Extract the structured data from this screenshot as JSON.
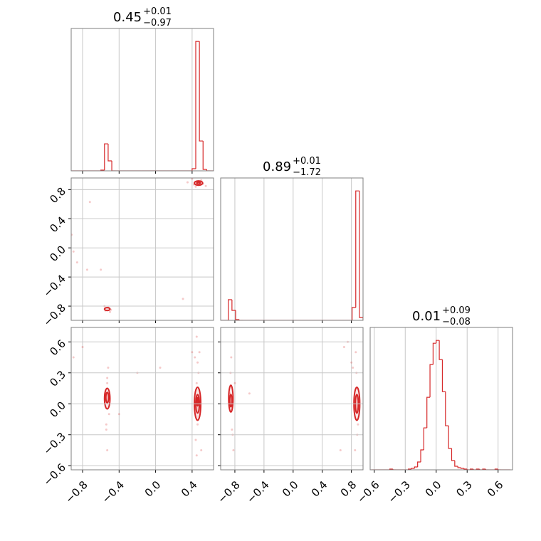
{
  "chart_data": [
    {
      "type": "histogram",
      "title": {
        "value": "0.45",
        "plus": "+0.01",
        "minus": "−0.97"
      },
      "color": "#d62728",
      "xlim": [
        -0.925,
        0.635
      ],
      "xticks": [
        {
          "value": -0.8,
          "label": "−0.8"
        },
        {
          "value": -0.4,
          "label": "−0.4"
        },
        {
          "value": 0.0,
          "label": "0.0"
        },
        0.4
      ],
      "bins": [
        -0.92,
        -0.88,
        -0.84,
        -0.8,
        -0.76,
        -0.72,
        -0.68,
        -0.64,
        -0.6,
        -0.56,
        -0.52,
        -0.48,
        -0.44,
        -0.4,
        -0.36,
        -0.32,
        -0.28,
        -0.24,
        -0.2,
        -0.16,
        -0.12,
        -0.08,
        -0.04,
        0,
        0.04,
        0.08,
        0.12,
        0.16,
        0.2,
        0.24,
        0.28,
        0.32,
        0.36,
        0.4,
        0.44,
        0.48,
        0.52,
        0.56,
        0.6,
        0.64
      ],
      "counts": [
        0,
        0,
        0,
        0,
        0,
        0,
        0,
        0,
        1,
        38,
        14,
        0,
        0,
        0,
        0,
        0,
        0,
        0,
        0,
        0,
        0,
        0,
        0,
        0,
        0,
        0,
        0,
        0,
        0,
        0,
        0,
        0,
        0,
        3,
        182,
        42,
        2,
        0,
        0
      ]
    },
    {
      "type": "scatter",
      "color": "#d62728",
      "xlim": [
        -0.925,
        0.635
      ],
      "xticks": [
        {
          "value": -0.8,
          "label": "−0.8"
        },
        {
          "value": -0.4,
          "label": "−0.4"
        },
        {
          "value": 0.0,
          "label": "0.0"
        },
        0.4
      ],
      "ylim": [
        -0.995,
        0.96
      ],
      "yticks": [
        {
          "value": -0.8,
          "label": "−0.8"
        },
        {
          "value": -0.4,
          "label": "−0.4"
        },
        {
          "value": 0.0,
          "label": "0.0"
        },
        0.4,
        0.8
      ],
      "x": [
        -0.92,
        -0.9,
        -0.72,
        -0.75,
        -0.6,
        -0.86,
        -0.56,
        -0.5,
        -0.52,
        0.3,
        0.55,
        0.4,
        0.42,
        0.5,
        0.35,
        0.44,
        0.52,
        -0.55,
        -0.49,
        0.48
      ],
      "y": [
        0.18,
        -0.05,
        0.63,
        -0.3,
        -0.3,
        -0.2,
        -0.8,
        -0.88,
        -0.82,
        -0.7,
        0.85,
        0.95,
        0.87,
        0.93,
        0.9,
        0.84,
        0.88,
        -0.86,
        -0.85,
        0.91
      ],
      "contours": [
        {
          "cx": 0.47,
          "cy": 0.89,
          "rx": 0.045,
          "ry": 0.03
        },
        {
          "cx": 0.47,
          "cy": 0.89,
          "rx": 0.02,
          "ry": 0.012
        },
        {
          "cx": -0.53,
          "cy": -0.84,
          "rx": 0.03,
          "ry": 0.02
        }
      ]
    },
    {
      "type": "histogram",
      "title": {
        "value": "0.89",
        "plus": "+0.01",
        "minus": "−1.72"
      },
      "color": "#d62728",
      "xlim": [
        -0.995,
        0.96
      ],
      "xticks": [
        {
          "value": -0.8,
          "label": "−0.8"
        },
        {
          "value": -0.4,
          "label": "−0.4"
        },
        {
          "value": 0.0,
          "label": "0.0"
        },
        0.4,
        0.8
      ],
      "bins": [
        -0.99,
        -0.94,
        -0.89,
        -0.84,
        -0.79,
        -0.74,
        -0.69,
        -0.64,
        -0.59,
        -0.54,
        -0.49,
        -0.44,
        -0.39,
        -0.34,
        -0.29,
        -0.24,
        -0.19,
        -0.14,
        -0.09,
        -0.04,
        0.01,
        0.06,
        0.11,
        0.16,
        0.21,
        0.26,
        0.31,
        0.36,
        0.41,
        0.46,
        0.51,
        0.56,
        0.61,
        0.66,
        0.71,
        0.76,
        0.81,
        0.86,
        0.91,
        0.96
      ],
      "counts": [
        0,
        0,
        29,
        14,
        1,
        0,
        0,
        0,
        0,
        0,
        0,
        0,
        0,
        0,
        0,
        0,
        0,
        0,
        0,
        0,
        0,
        0,
        0,
        0,
        0,
        0,
        0,
        0,
        0,
        0,
        0,
        0,
        0,
        0,
        0,
        0,
        18,
        182,
        4
      ]
    },
    {
      "type": "scatter",
      "color": "#d62728",
      "xlim": [
        -0.925,
        0.635
      ],
      "xticks": [
        {
          "value": -0.8,
          "label": "−0.8"
        },
        {
          "value": -0.4,
          "label": "−0.4"
        },
        {
          "value": 0.0,
          "label": "0.0"
        },
        0.4
      ],
      "ylim": [
        -0.64,
        0.74
      ],
      "yticks": [
        {
          "value": -0.6,
          "label": "−0.6"
        },
        {
          "value": -0.3,
          "label": "−0.3"
        },
        {
          "value": 0.0,
          "label": "0.0"
        },
        0.3,
        0.6
      ],
      "x": [
        -0.53,
        -0.54,
        -0.52,
        -0.53,
        -0.55,
        -0.51,
        -0.53,
        -0.54,
        0.45,
        0.46,
        0.44,
        0.47,
        0.45,
        0.43,
        0.46,
        0.48,
        0.45,
        0.5,
        -0.8,
        -0.9,
        -0.2,
        0.05,
        -0.4,
        0.4
      ],
      "y": [
        0.25,
        -0.2,
        0.35,
        -0.45,
        0.1,
        -0.1,
        0.2,
        -0.25,
        0.65,
        0.4,
        -0.35,
        0.3,
        -0.5,
        0.45,
        -0.2,
        0.5,
        0.2,
        -0.45,
        0.55,
        0.45,
        0.3,
        0.35,
        -0.1,
        0.5
      ],
      "contours": [
        {
          "cx": -0.53,
          "cy": 0.05,
          "rx": 0.03,
          "ry": 0.1
        },
        {
          "cx": -0.53,
          "cy": 0.06,
          "rx": 0.015,
          "ry": 0.05
        },
        {
          "cx": 0.46,
          "cy": 0.0,
          "rx": 0.035,
          "ry": 0.16
        },
        {
          "cx": 0.46,
          "cy": 0.0,
          "rx": 0.02,
          "ry": 0.09
        },
        {
          "cx": 0.46,
          "cy": 0.02,
          "rx": 0.008,
          "ry": 0.04
        }
      ]
    },
    {
      "type": "scatter",
      "color": "#d62728",
      "xlim": [
        -0.995,
        0.96
      ],
      "xticks": [
        {
          "value": -0.8,
          "label": "−0.8"
        },
        {
          "value": -0.4,
          "label": "−0.4"
        },
        {
          "value": 0.0,
          "label": "0.0"
        },
        0.4,
        0.8
      ],
      "ylim": [
        -0.64,
        0.74
      ],
      "yticks": [
        {
          "value": -0.6,
          "label": "−0.6"
        },
        {
          "value": -0.3,
          "label": "−0.3"
        },
        {
          "value": 0.0,
          "label": "0.0"
        },
        0.3,
        0.6
      ],
      "x": [
        -0.86,
        -0.84,
        -0.85,
        -0.83,
        -0.8,
        -0.82,
        -0.87,
        0.87,
        0.88,
        0.86,
        0.85,
        0.8,
        0.75,
        0.7,
        0.82,
        0.89,
        -0.6,
        0.65
      ],
      "y": [
        0.3,
        -0.25,
        0.45,
        -0.3,
        0.2,
        -0.45,
        0.1,
        0.3,
        -0.3,
        0.5,
        -0.45,
        0.4,
        0.6,
        0.55,
        0.35,
        -0.2,
        0.1,
        -0.45
      ],
      "contours": [
        {
          "cx": -0.855,
          "cy": 0.05,
          "rx": 0.03,
          "ry": 0.13
        },
        {
          "cx": -0.855,
          "cy": 0.03,
          "rx": 0.015,
          "ry": 0.06
        },
        {
          "cx": 0.875,
          "cy": 0.0,
          "rx": 0.04,
          "ry": 0.16
        },
        {
          "cx": 0.875,
          "cy": 0.0,
          "rx": 0.02,
          "ry": 0.09
        }
      ]
    },
    {
      "type": "histogram",
      "title": {
        "value": "0.01",
        "plus": "+0.09",
        "minus": "−0.08"
      },
      "color": "#d62728",
      "xlim": [
        -0.64,
        0.74
      ],
      "xticks": [
        {
          "value": -0.6,
          "label": "−0.6"
        },
        {
          "value": -0.3,
          "label": "−0.3"
        },
        {
          "value": 0.0,
          "label": "0.0"
        },
        0.3,
        0.6
      ],
      "bins": [
        -0.63,
        -0.6,
        -0.57,
        -0.54,
        -0.51,
        -0.48,
        -0.45,
        -0.42,
        -0.39,
        -0.36,
        -0.33,
        -0.3,
        -0.27,
        -0.24,
        -0.21,
        -0.18,
        -0.15,
        -0.12,
        -0.09,
        -0.06,
        -0.03,
        0,
        0.03,
        0.06,
        0.09,
        0.12,
        0.15,
        0.18,
        0.21,
        0.24,
        0.27,
        0.3,
        0.33,
        0.36,
        0.39,
        0.42,
        0.45,
        0.48,
        0.51,
        0.54,
        0.57,
        0.6,
        0.63,
        0.66,
        0.69,
        0.72
      ],
      "counts": [
        0,
        0,
        0,
        0,
        0,
        0,
        1,
        0,
        0,
        0,
        0,
        0,
        1,
        2,
        4,
        11,
        28,
        59,
        102,
        148,
        178,
        182,
        155,
        110,
        62,
        30,
        13,
        5,
        3,
        2,
        1,
        0,
        1,
        0,
        1,
        0,
        1,
        0,
        0,
        0,
        1,
        0,
        0,
        0,
        0
      ]
    }
  ]
}
